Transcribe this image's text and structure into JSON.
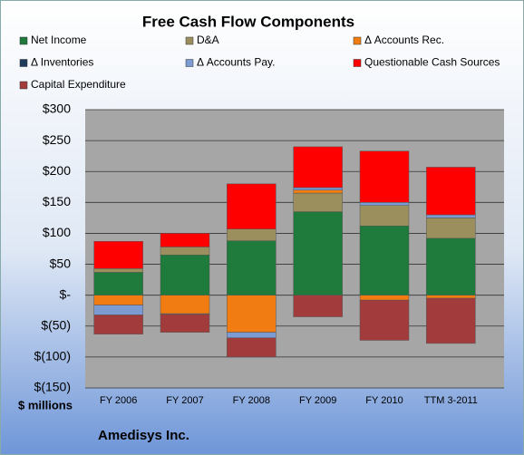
{
  "chart_data": {
    "type": "stacked_bar",
    "title": "Free Cash Flow Components",
    "y_label": "$ millions",
    "annotation": "Amedisys Inc.",
    "categories": [
      "FY 2006",
      "FY 2007",
      "FY 2008",
      "FY 2009",
      "FY 2010",
      "TTM 3-2011"
    ],
    "series": [
      {
        "name": "Net Income",
        "color": "#1e7b3c",
        "values": [
          37,
          65,
          88,
          135,
          112,
          92
        ]
      },
      {
        "name": "D&A",
        "color": "#9b8f5e",
        "values": [
          6,
          13,
          19,
          30,
          33,
          33
        ]
      },
      {
        "name": "Δ Accounts Rec.",
        "color": "#f07c12",
        "values": [
          -16,
          -30,
          -60,
          5,
          -8,
          -5
        ]
      },
      {
        "name": "Δ Inventories",
        "color": "#1f3b5c",
        "values": [
          0,
          0,
          0,
          0,
          0,
          0
        ]
      },
      {
        "name": "Δ Accounts Pay.",
        "color": "#7b9bd2",
        "values": [
          -16,
          -1,
          -9,
          4,
          5,
          5
        ]
      },
      {
        "name": "Questionable Cash Sources",
        "color": "#ff0000",
        "values": [
          44,
          22,
          73,
          66,
          83,
          77
        ]
      },
      {
        "name": "Capital Expenditure",
        "color": "#a23b3b",
        "values": [
          -31,
          -29,
          -31,
          -35,
          -65,
          -73
        ]
      }
    ],
    "ylim": [
      -150,
      300
    ],
    "yticks": [
      {
        "value": -150,
        "label": "$(150)"
      },
      {
        "value": -100,
        "label": "$(100)"
      },
      {
        "value": -50,
        "label": "$(50)"
      },
      {
        "value": 0,
        "label": "$-"
      },
      {
        "value": 50,
        "label": "$50"
      },
      {
        "value": 100,
        "label": "$100"
      },
      {
        "value": 150,
        "label": "$150"
      },
      {
        "value": 200,
        "label": "$200"
      },
      {
        "value": 250,
        "label": "$250"
      },
      {
        "value": 300,
        "label": "$300"
      }
    ],
    "grid": true
  }
}
